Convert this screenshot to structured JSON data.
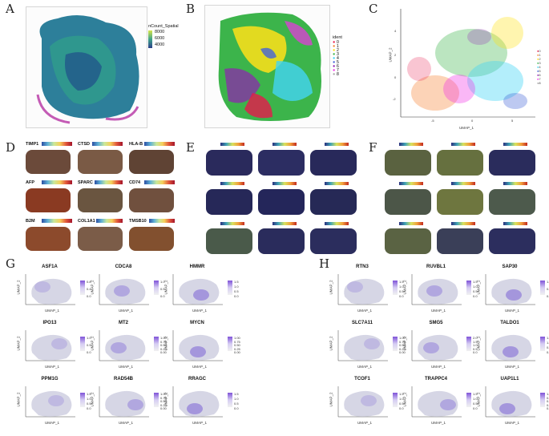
{
  "figure": {
    "panel_labels": [
      "A",
      "B",
      "C",
      "D",
      "E",
      "F",
      "G",
      "H"
    ],
    "panel_a": {
      "legend_title": "nCount_Spatial",
      "legend_values": [
        "8000",
        "6000",
        "4000"
      ]
    },
    "panel_b": {
      "legend_title": "ident",
      "legend_values": [
        "0",
        "1",
        "2",
        "3",
        "4",
        "5",
        "6",
        "7",
        "8"
      ]
    },
    "panel_c": {
      "xlabel": "UMAP_1",
      "ylabel": "UMAP_2",
      "yticks": [
        "4",
        "2",
        "0",
        "-2"
      ],
      "xticks": [
        "-5",
        "0",
        "5"
      ],
      "legend_values": [
        "0",
        "1",
        "2",
        "3",
        "4",
        "5",
        "6",
        "7",
        "8"
      ]
    },
    "panel_d": {
      "genes": [
        "TIMP1",
        "CTSD",
        "HLA-B",
        "AFP",
        "SPARC",
        "CD74",
        "B2M",
        "COL1A1",
        "TMSB10"
      ]
    },
    "panel_g": {
      "genes": [
        "ASF1A",
        "CDCA8",
        "HMMR",
        "IPO13",
        "MT2",
        "MYCN",
        "PPM1G",
        "RAD54B",
        "RRAGC"
      ],
      "scales": [
        [
          "0.8",
          "0.4",
          "0.0"
        ],
        [
          "1.0",
          "0.5",
          "0.0"
        ],
        [
          "1.5",
          "1.0",
          "0.5",
          "0.0"
        ],
        [
          "1.0",
          "0.5",
          "0.0"
        ],
        [
          "1.00",
          "0.75",
          "0.50",
          "0.25",
          "0.00"
        ],
        [
          "1.00",
          "0.75",
          "0.50",
          "0.25",
          "0.00"
        ],
        [
          "1.5",
          "1.0",
          "0.5",
          "0.0"
        ],
        [
          "1.00",
          "0.75",
          "0.50",
          "0.25",
          "0.00"
        ],
        [
          "1.5",
          "1.0",
          "0.5",
          "0.0"
        ]
      ]
    },
    "panel_h": {
      "genes": [
        "RTN3",
        "RUVBL1",
        "SAP30",
        "SLC7A11",
        "SMG5",
        "TALDO1",
        "TCOF1",
        "TRAPPC4",
        "UAP1L1"
      ],
      "scales": [
        [
          "1.5",
          "1.0",
          "0.5",
          "0.0"
        ],
        [
          "1.5",
          "1.0",
          "0.5",
          "0.0"
        ],
        [
          "1.0",
          "0.5",
          "0.0"
        ],
        [
          "1.00",
          "0.75",
          "0.50",
          "0.25",
          "0.00"
        ],
        [
          "2.0",
          "1.5",
          "1.0",
          "0.5",
          "0.0"
        ],
        [
          "1.5",
          "1.0",
          "0.5",
          "0.0"
        ],
        [
          "1.5",
          "1.0",
          "0.5",
          "0.0"
        ],
        [
          "1.5",
          "1.0",
          "0.5",
          "0.0"
        ],
        [
          "1.00",
          "0.75",
          "0.50",
          "0.25",
          "0.00"
        ]
      ]
    },
    "umap_axis": {
      "x": "UMAP_1",
      "y": "UMAP_2"
    },
    "colors": {
      "cluster_palette": [
        "#e6194b",
        "#f58231",
        "#ffe119",
        "#3cb44b",
        "#42d4f4",
        "#4363d8",
        "#911eb4",
        "#f032e6",
        "#a9a9a9"
      ]
    }
  }
}
